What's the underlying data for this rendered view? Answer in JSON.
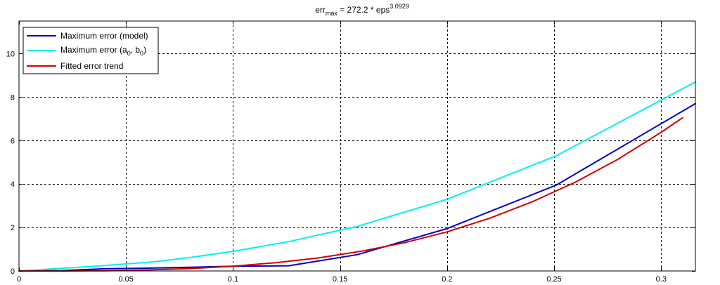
{
  "chart_data": {
    "type": "line",
    "title": {
      "base": "err",
      "sub": "max",
      "mid": " = 272.2 * eps",
      "sup": "3.0929"
    },
    "xlabel": "",
    "ylabel": "",
    "xlim": [
      0,
      0.316
    ],
    "ylim": [
      0,
      11.5
    ],
    "x_ticks": [
      0,
      0.05,
      0.1,
      0.15,
      0.2,
      0.25,
      0.3
    ],
    "x_tick_labels": [
      "0",
      "0.05",
      "0.1",
      "0.15",
      "0.2",
      "0.25",
      "0.3"
    ],
    "y_ticks": [
      0,
      2,
      4,
      6,
      8,
      10
    ],
    "y_tick_labels": [
      "0",
      "2",
      "4",
      "6",
      "8",
      "10"
    ],
    "grid": true,
    "legend_position": "top-left",
    "series": [
      {
        "name": "Maximum error (model)",
        "color": "#0000c8",
        "x": [
          0,
          0.02,
          0.04,
          0.06,
          0.08,
          0.1,
          0.126,
          0.158,
          0.2,
          0.251,
          0.316
        ],
        "y": [
          0,
          0.02,
          0.1,
          0.13,
          0.17,
          0.22,
          0.24,
          0.75,
          1.95,
          3.95,
          7.7
        ]
      },
      {
        "name_prefix": "Maximum error (a",
        "name_sub1": "0",
        "name_mid": ", b",
        "name_sub2": "0",
        "name_suffix": ")",
        "color": "#00f0f0",
        "x": [
          0,
          0.02,
          0.04,
          0.063,
          0.08,
          0.1,
          0.126,
          0.158,
          0.2,
          0.251,
          0.316
        ],
        "y": [
          0,
          0.12,
          0.25,
          0.42,
          0.62,
          0.9,
          1.35,
          2.05,
          3.3,
          5.3,
          8.7
        ]
      },
      {
        "name": "Fitted error trend",
        "color": "#d00000",
        "x": [
          0,
          0.02,
          0.04,
          0.06,
          0.08,
          0.1,
          0.12,
          0.14,
          0.16,
          0.18,
          0.2,
          0.22,
          0.24,
          0.26,
          0.28,
          0.3,
          0.31
        ],
        "y": [
          0,
          0.0,
          0.01,
          0.05,
          0.11,
          0.22,
          0.38,
          0.6,
          0.91,
          1.3,
          1.8,
          2.43,
          3.19,
          4.09,
          5.15,
          6.38,
          7.05
        ]
      }
    ]
  }
}
